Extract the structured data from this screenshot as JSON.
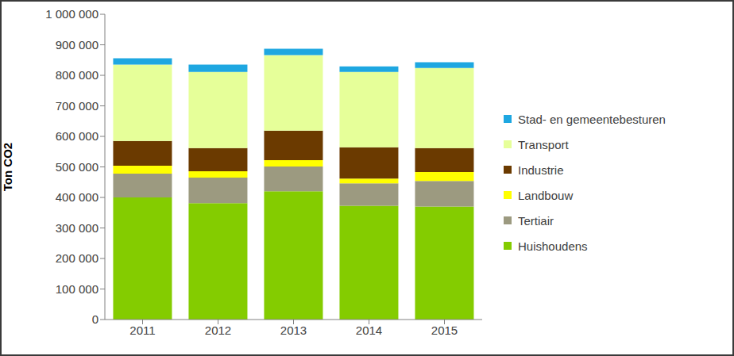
{
  "chart_data": {
    "type": "bar",
    "stacked": true,
    "y_label": "Ton CO2",
    "legend": "right",
    "grid": false,
    "categories": [
      "2011",
      "2012",
      "2013",
      "2014",
      "2015"
    ],
    "ylim": [
      0,
      1000000
    ],
    "yticks": [
      0,
      {
        "value": 100000,
        "label": "100 000"
      },
      {
        "value": 200000,
        "label": "200 000"
      },
      {
        "value": 300000,
        "label": "300 000"
      },
      {
        "value": 400000,
        "label": "400 000"
      },
      {
        "value": 500000,
        "label": "500 000"
      },
      {
        "value": 600000,
        "label": "600 000"
      },
      {
        "value": 700000,
        "label": "700 000"
      },
      {
        "value": 800000,
        "label": "800 000"
      },
      {
        "value": 900000,
        "label": "900 000"
      },
      {
        "value": 1000000,
        "label": "1 000 000"
      }
    ],
    "series": [
      {
        "name": "Huishoudens",
        "color": "#84cc00",
        "values": [
          400000,
          381000,
          420000,
          373000,
          370000
        ]
      },
      {
        "name": "Tertiair",
        "color": "#9c9a80",
        "values": [
          78000,
          84000,
          81000,
          73000,
          84000
        ]
      },
      {
        "name": "Landbouw",
        "color": "#ffff00",
        "values": [
          26000,
          21000,
          21000,
          16000,
          29000
        ]
      },
      {
        "name": "Industrie",
        "color": "#6b3a00",
        "values": [
          81000,
          76000,
          97000,
          102000,
          79000
        ]
      },
      {
        "name": "Transport",
        "color": "#e6ff99",
        "values": [
          250000,
          249000,
          247000,
          247000,
          262000
        ]
      },
      {
        "name": "Stad- en gemeentebesturen",
        "color": "#1ea7e1",
        "values": [
          21000,
          24000,
          21000,
          18000,
          19000
        ]
      }
    ]
  }
}
